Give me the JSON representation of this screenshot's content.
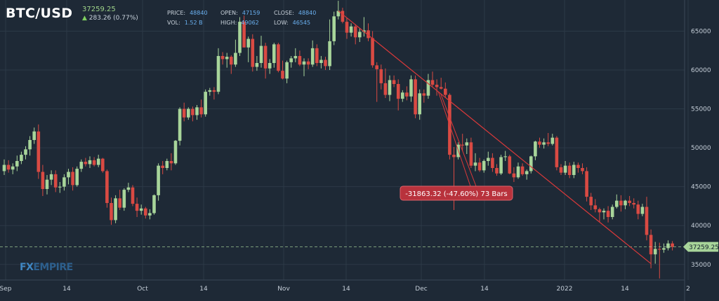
{
  "header": {
    "symbol": "BTC/USD",
    "last_price": "37259.25",
    "change": "283.26 (0.77%)",
    "stats": [
      {
        "label": "PRICE:",
        "value": "48840"
      },
      {
        "label": "OPEN:",
        "value": "47159"
      },
      {
        "label": "CLOSE:",
        "value": "48840"
      },
      {
        "label": "VOL:",
        "value": "1.52 B"
      },
      {
        "label": "HIGH:",
        "value": "49062"
      },
      {
        "label": "LOW:",
        "value": "46545"
      }
    ]
  },
  "watermark": {
    "fx": "FX",
    "empire": "EMPIRE"
  },
  "colors": {
    "background": "#1e2936",
    "up": "#a8d59a",
    "down": "#d94a43",
    "trend": "#d9393a",
    "price_line": "#a8d59a",
    "label_bg": "#b8323c"
  },
  "chart_data": {
    "type": "candlestick",
    "ylim": [
      33000,
      69000
    ],
    "y_ticks": [
      35000,
      40000,
      45000,
      50000,
      55000,
      60000,
      65000
    ],
    "x_tick_labels": [
      "Sep",
      "14",
      "Oct",
      "14",
      "Nov",
      "14",
      "Dec",
      "14",
      "2022",
      "14",
      "2"
    ],
    "grid": true,
    "current_price": 37259.25,
    "current_price_label": "37259.25",
    "candles": [
      [
        47000,
        48500,
        46500,
        47800
      ],
      [
        47800,
        48400,
        46800,
        47200
      ],
      [
        47200,
        48000,
        46600,
        47600
      ],
      [
        47600,
        49000,
        47000,
        48300
      ],
      [
        48300,
        49500,
        47900,
        49100
      ],
      [
        49100,
        50200,
        48500,
        49800
      ],
      [
        49800,
        51500,
        49000,
        51000
      ],
      [
        51000,
        52600,
        50500,
        52100
      ],
      [
        52100,
        53000,
        46000,
        46900
      ],
      [
        46900,
        47800,
        43800,
        44700
      ],
      [
        44700,
        46500,
        44000,
        45900
      ],
      [
        45900,
        47100,
        45200,
        46600
      ],
      [
        46600,
        47100,
        44300,
        44900
      ],
      [
        44900,
        45600,
        44200,
        45000
      ],
      [
        45000,
        46600,
        44500,
        46200
      ],
      [
        46200,
        47300,
        45300,
        46900
      ],
      [
        46900,
        47500,
        44500,
        45200
      ],
      [
        45200,
        47600,
        45000,
        47300
      ],
      [
        47300,
        48500,
        46900,
        48200
      ],
      [
        48200,
        48700,
        47600,
        47900
      ],
      [
        47900,
        48900,
        47400,
        48400
      ],
      [
        48400,
        48800,
        47600,
        47800
      ],
      [
        47800,
        49100,
        47500,
        48600
      ],
      [
        48600,
        48700,
        46800,
        47000
      ],
      [
        47000,
        47200,
        42300,
        42900
      ],
      [
        42900,
        43600,
        40100,
        40700
      ],
      [
        40700,
        43900,
        40300,
        43500
      ],
      [
        43500,
        44600,
        42000,
        42300
      ],
      [
        42300,
        44800,
        41900,
        44600
      ],
      [
        44600,
        45500,
        44300,
        44900
      ],
      [
        44900,
        45200,
        42500,
        42800
      ],
      [
        42800,
        43600,
        41100,
        41900
      ],
      [
        41900,
        42700,
        41400,
        42200
      ],
      [
        42200,
        42400,
        40900,
        41300
      ],
      [
        41300,
        42100,
        40800,
        41600
      ],
      [
        41600,
        44000,
        41400,
        43900
      ],
      [
        43900,
        48000,
        43200,
        47700
      ],
      [
        47700,
        48300,
        46600,
        47400
      ],
      [
        47400,
        48600,
        47100,
        48300
      ],
      [
        48300,
        49300,
        47100,
        48000
      ],
      [
        48000,
        51000,
        47800,
        50900
      ],
      [
        50900,
        55200,
        50300,
        55000
      ],
      [
        55000,
        55800,
        53400,
        53900
      ],
      [
        53900,
        55200,
        53600,
        55000
      ],
      [
        55000,
        55300,
        53400,
        54200
      ],
      [
        54200,
        55500,
        53600,
        55200
      ],
      [
        55200,
        56200,
        53900,
        54300
      ],
      [
        54300,
        57500,
        54000,
        57200
      ],
      [
        57200,
        57700,
        56700,
        57400
      ],
      [
        57400,
        57800,
        56200,
        57200
      ],
      [
        57200,
        62800,
        56900,
        61800
      ],
      [
        61800,
        62300,
        60700,
        61400
      ],
      [
        61400,
        62200,
        60300,
        61700
      ],
      [
        61700,
        61900,
        59500,
        60700
      ],
      [
        60700,
        63900,
        60400,
        62200
      ],
      [
        62200,
        66800,
        61800,
        66200
      ],
      [
        66200,
        67000,
        62900,
        62900
      ],
      [
        62900,
        64300,
        61000,
        64000
      ],
      [
        64000,
        64600,
        59800,
        60400
      ],
      [
        60400,
        61800,
        59900,
        60900
      ],
      [
        60900,
        64400,
        60300,
        63100
      ],
      [
        63100,
        63500,
        58900,
        60200
      ],
      [
        60200,
        61400,
        59500,
        60900
      ],
      [
        60900,
        63500,
        60300,
        63300
      ],
      [
        63300,
        63500,
        59700,
        59900
      ],
      [
        59900,
        61200,
        58800,
        58900
      ],
      [
        58900,
        61200,
        58300,
        61000
      ],
      [
        61000,
        61800,
        60300,
        61500
      ],
      [
        61500,
        62800,
        61000,
        61800
      ],
      [
        61800,
        62500,
        60500,
        60700
      ],
      [
        60700,
        61500,
        59200,
        61100
      ],
      [
        61100,
        61500,
        60100,
        60700
      ],
      [
        60700,
        63800,
        60400,
        62800
      ],
      [
        62800,
        63300,
        60500,
        60900
      ],
      [
        60900,
        61800,
        60200,
        61300
      ],
      [
        61300,
        61700,
        60000,
        60500
      ],
      [
        60500,
        66500,
        60000,
        63700
      ],
      [
        63700,
        67500,
        63200,
        66900
      ],
      [
        66900,
        68900,
        66500,
        67600
      ],
      [
        67600,
        68000,
        66000,
        66200
      ],
      [
        66200,
        66700,
        64000,
        64800
      ],
      [
        64800,
        66000,
        64300,
        65600
      ],
      [
        65600,
        65900,
        63300,
        64200
      ],
      [
        64200,
        65400,
        63600,
        64900
      ],
      [
        64900,
        66800,
        64300,
        65100
      ],
      [
        65100,
        66000,
        63700,
        64100
      ],
      [
        64100,
        65000,
        60300,
        60600
      ],
      [
        60600,
        61000,
        55900,
        60100
      ],
      [
        60100,
        60700,
        57500,
        58300
      ],
      [
        58300,
        60200,
        56400,
        56800
      ],
      [
        56800,
        59300,
        56000,
        58700
      ],
      [
        58700,
        59300,
        57800,
        58200
      ],
      [
        58200,
        58800,
        54800,
        56300
      ],
      [
        56300,
        57400,
        55900,
        57100
      ],
      [
        57100,
        57900,
        56100,
        56600
      ],
      [
        56600,
        59300,
        55900,
        58800
      ],
      [
        58800,
        59300,
        53800,
        54300
      ],
      [
        54300,
        57500,
        53600,
        57000
      ],
      [
        57000,
        57500,
        55800,
        56700
      ],
      [
        56700,
        59500,
        56300,
        58700
      ],
      [
        58700,
        59800,
        57900,
        58100
      ],
      [
        58100,
        58800,
        56700,
        57800
      ],
      [
        57800,
        59000,
        57500,
        57600
      ],
      [
        57600,
        58400,
        56400,
        56800
      ],
      [
        56800,
        57000,
        48500,
        49100
      ],
      [
        49100,
        50100,
        42000,
        48800
      ],
      [
        48800,
        50700,
        48500,
        50400
      ],
      [
        50400,
        51800,
        49600,
        50300
      ],
      [
        50300,
        51200,
        49200,
        50700
      ],
      [
        50700,
        51300,
        47400,
        47700
      ],
      [
        47700,
        49300,
        47000,
        48100
      ],
      [
        48100,
        48700,
        46900,
        47100
      ],
      [
        47100,
        48500,
        46800,
        48300
      ],
      [
        48300,
        49500,
        47700,
        48700
      ],
      [
        48700,
        49300,
        46900,
        47400
      ],
      [
        47400,
        47900,
        46400,
        46700
      ],
      [
        46700,
        49100,
        46500,
        48800
      ],
      [
        48800,
        49600,
        48300,
        48900
      ],
      [
        48900,
        49100,
        46600,
        46700
      ],
      [
        46700,
        47500,
        45600,
        46200
      ],
      [
        46200,
        48100,
        46000,
        47600
      ],
      [
        47600,
        48000,
        46400,
        46600
      ],
      [
        46600,
        47200,
        45900,
        47000
      ],
      [
        47000,
        49000,
        46700,
        48900
      ],
      [
        48900,
        50900,
        48400,
        50800
      ],
      [
        50800,
        51300,
        50000,
        50400
      ],
      [
        50400,
        51200,
        49900,
        50700
      ],
      [
        50700,
        51900,
        50200,
        50500
      ],
      [
        50500,
        51800,
        50300,
        51300
      ],
      [
        51300,
        51500,
        47100,
        47500
      ],
      [
        47500,
        47900,
        46500,
        46800
      ],
      [
        46800,
        48300,
        46500,
        47700
      ],
      [
        47700,
        48100,
        46100,
        46500
      ],
      [
        46500,
        48200,
        46100,
        47800
      ],
      [
        47800,
        48100,
        46800,
        47400
      ],
      [
        47400,
        48000,
        46600,
        47000
      ],
      [
        47000,
        47500,
        43100,
        43700
      ],
      [
        43700,
        44200,
        42000,
        42600
      ],
      [
        42600,
        43400,
        41700,
        42100
      ],
      [
        42100,
        42300,
        40500,
        41700
      ],
      [
        41700,
        42200,
        40800,
        41900
      ],
      [
        41900,
        42500,
        40400,
        41100
      ],
      [
        41100,
        42700,
        40800,
        42400
      ],
      [
        42400,
        44000,
        42200,
        43200
      ],
      [
        43200,
        43900,
        41800,
        42600
      ],
      [
        42600,
        43300,
        42100,
        43200
      ],
      [
        43200,
        43800,
        42500,
        42900
      ],
      [
        42900,
        43500,
        42200,
        42700
      ],
      [
        42700,
        43200,
        40800,
        41500
      ],
      [
        41500,
        42800,
        41200,
        42400
      ],
      [
        42400,
        43700,
        38100,
        38800
      ],
      [
        38800,
        39500,
        34500,
        36300
      ],
      [
        36300,
        37900,
        35100,
        37000
      ],
      [
        37000,
        37800,
        33200,
        36900
      ],
      [
        36900,
        37700,
        36500,
        37100
      ],
      [
        37100,
        38100,
        36800,
        37700
      ],
      [
        37700,
        38000,
        36800,
        37259
      ]
    ],
    "annotation": "-31863.32 (-47.60%) 73 Bars",
    "trendline": {
      "from": {
        "bar": 78,
        "price": 67600
      },
      "to": {
        "bar": 151,
        "price": 35100
      }
    }
  }
}
